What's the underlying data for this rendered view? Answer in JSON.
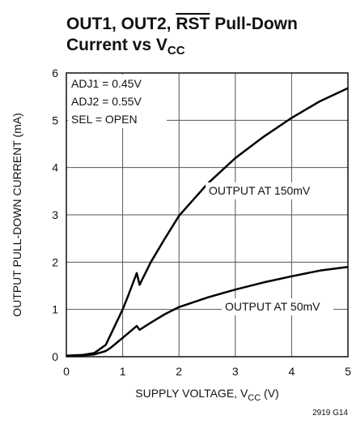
{
  "chart_data": {
    "type": "line",
    "title": [
      "OUT1, OUT2, ",
      "RST",
      " Pull-Down",
      "Current vs V",
      "CC"
    ],
    "xlabel": [
      "SUPPLY VOLTAGE, V",
      "CC",
      " (V)"
    ],
    "ylabel": "OUTPUT PULL-DOWN CURRENT (mA)",
    "annotations": [
      "ADJ1 = 0.45V",
      "ADJ2 = 0.55V",
      "SEL = OPEN"
    ],
    "footnote": "2919 G14",
    "x": [
      0,
      0.3,
      0.5,
      0.7,
      0.8,
      0.9,
      1.0,
      1.1,
      1.25,
      1.3,
      1.5,
      1.75,
      2,
      2.5,
      3,
      3.5,
      4,
      4.5,
      5
    ],
    "series": [
      {
        "name": "OUTPUT AT 150mV",
        "color": "#000000",
        "values": [
          0.02,
          0.04,
          0.08,
          0.25,
          0.5,
          0.75,
          1.0,
          1.3,
          1.77,
          1.52,
          2.0,
          2.5,
          2.98,
          3.65,
          4.2,
          4.65,
          5.05,
          5.4,
          5.68
        ]
      },
      {
        "name": "OUTPUT AT 50mV",
        "color": "#000000",
        "values": [
          0.02,
          0.03,
          0.05,
          0.12,
          0.2,
          0.3,
          0.4,
          0.5,
          0.65,
          0.57,
          0.72,
          0.9,
          1.05,
          1.25,
          1.42,
          1.57,
          1.7,
          1.82,
          1.9
        ]
      }
    ],
    "xlim": [
      0,
      5
    ],
    "xticks": [
      0,
      1,
      2,
      3,
      4,
      5
    ],
    "ylim": [
      0,
      6
    ],
    "yticks": [
      0,
      1,
      2,
      3,
      4,
      5,
      6
    ],
    "grid": true
  }
}
